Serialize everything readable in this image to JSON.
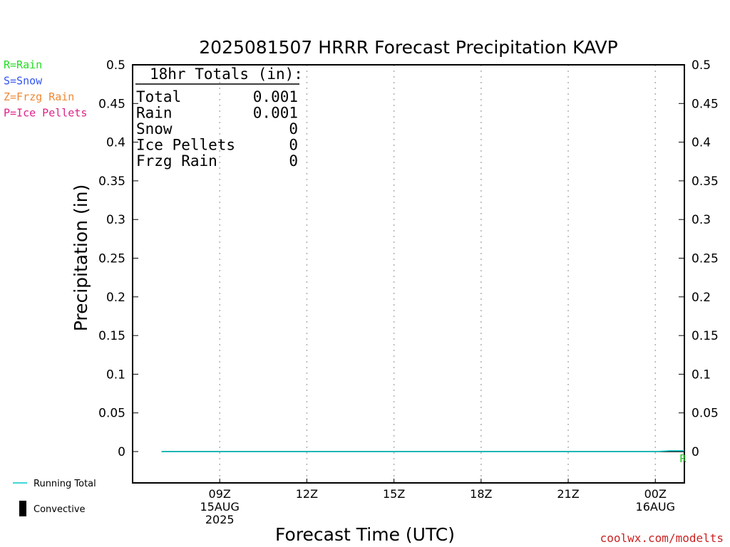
{
  "chart_data": {
    "type": "line",
    "title": "2025081507 HRRR Forecast Precipitation KAVP",
    "xlabel": "Forecast Time (UTC)",
    "ylabel": "Precipitation (in)",
    "ylim": [
      0,
      0.5
    ],
    "y_ticks": [
      "0",
      "0.05",
      "0.1",
      "0.15",
      "0.2",
      "0.25",
      "0.3",
      "0.35",
      "0.4",
      "0.45",
      "0.5"
    ],
    "x_range_hours_utc": [
      "2025-08-15T06:00Z",
      "2025-08-16T01:00Z"
    ],
    "x_ticks": [
      {
        "time": "2025-08-15T09:00Z",
        "lines": [
          "09Z",
          "15AUG",
          "2025"
        ]
      },
      {
        "time": "2025-08-15T12:00Z",
        "lines": [
          "12Z"
        ]
      },
      {
        "time": "2025-08-15T15:00Z",
        "lines": [
          "15Z"
        ]
      },
      {
        "time": "2025-08-15T18:00Z",
        "lines": [
          "18Z"
        ]
      },
      {
        "time": "2025-08-15T21:00Z",
        "lines": [
          "21Z"
        ]
      },
      {
        "time": "2025-08-16T00:00Z",
        "lines": [
          "00Z",
          "16AUG"
        ]
      }
    ],
    "grid": "vertical dotted",
    "series": [
      {
        "name": "Running Total",
        "color": "#00c8c8",
        "points": [
          {
            "time": "2025-08-15T07:00Z",
            "value": 0
          },
          {
            "time": "2025-08-15T12:00Z",
            "value": 0
          },
          {
            "time": "2025-08-15T18:00Z",
            "value": 0
          },
          {
            "time": "2025-08-16T00:00Z",
            "value": 0
          },
          {
            "time": "2025-08-16T00:30Z",
            "value": 0.001
          },
          {
            "time": "2025-08-16T01:00Z",
            "value": 0.001
          }
        ]
      }
    ],
    "precip_type_markers": [
      {
        "time": "2025-08-16T01:00Z",
        "label": "R",
        "color": "#22cc22"
      }
    ],
    "type_legend": [
      {
        "text": "R=Rain",
        "color": "#22dd22"
      },
      {
        "text": "S=Snow",
        "color": "#3355ee"
      },
      {
        "text": "Z=Frzg Rain",
        "color": "#ee8833"
      },
      {
        "text": "P=Ice Pellets",
        "color": "#dd2288"
      }
    ],
    "series_legend": [
      {
        "text": "Running Total",
        "color": "#00c8c8",
        "symbol": "line"
      },
      {
        "text": "Convective",
        "color": "#000000",
        "symbol": "bar"
      }
    ],
    "totals": {
      "heading": "18hr Totals (in):",
      "rows": [
        {
          "label": "Total",
          "value": "0.001"
        },
        {
          "label": "Rain",
          "value": "0.001"
        },
        {
          "label": "Snow",
          "value": "0"
        },
        {
          "label": "Ice Pellets",
          "value": "0"
        },
        {
          "label": "Frzg Rain",
          "value": "0"
        }
      ]
    },
    "credit": "coolwx.com/modelts"
  }
}
